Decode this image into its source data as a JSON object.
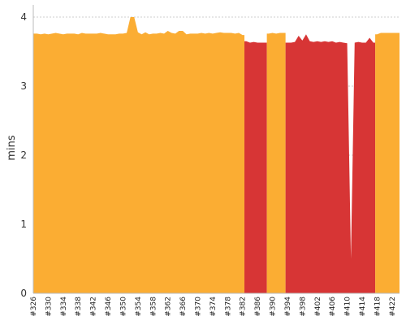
{
  "chart_data": {
    "type": "area",
    "ylabel": "mins",
    "ylim": [
      0,
      4
    ],
    "yticks": [
      "0",
      "1",
      "2",
      "3",
      "4"
    ],
    "grid": "horizontal dashed",
    "x_tick_labels": [
      "#326",
      "#330",
      "#334",
      "#338",
      "#342",
      "#346",
      "#350",
      "#354",
      "#358",
      "#362",
      "#366",
      "#370",
      "#374",
      "#378",
      "#382",
      "#386",
      "#390",
      "#394",
      "#398",
      "#402",
      "#406",
      "#410",
      "#414",
      "#418",
      "#422"
    ],
    "x_range": [
      326,
      424
    ],
    "x": [
      326,
      327,
      328,
      329,
      330,
      331,
      332,
      333,
      334,
      335,
      336,
      337,
      338,
      339,
      340,
      341,
      342,
      343,
      344,
      345,
      346,
      347,
      348,
      349,
      350,
      351,
      352,
      353,
      354,
      355,
      356,
      357,
      358,
      359,
      360,
      361,
      362,
      363,
      364,
      365,
      366,
      367,
      368,
      369,
      370,
      371,
      372,
      373,
      374,
      375,
      376,
      377,
      378,
      379,
      380,
      381,
      382,
      383,
      384,
      385,
      386,
      387,
      388,
      389,
      390,
      391,
      392,
      393,
      394,
      395,
      396,
      397,
      398,
      399,
      400,
      401,
      402,
      403,
      404,
      405,
      406,
      407,
      408,
      409,
      410,
      411,
      412,
      413,
      414,
      415,
      416,
      417,
      418,
      419,
      420,
      421,
      422,
      423,
      424
    ],
    "values": [
      3.76,
      3.76,
      3.75,
      3.76,
      3.75,
      3.76,
      3.77,
      3.76,
      3.75,
      3.76,
      3.76,
      3.76,
      3.75,
      3.77,
      3.76,
      3.76,
      3.76,
      3.76,
      3.77,
      3.76,
      3.75,
      3.75,
      3.75,
      3.76,
      3.76,
      3.77,
      4.0,
      4.0,
      3.78,
      3.75,
      3.78,
      3.75,
      3.76,
      3.76,
      3.77,
      3.76,
      3.8,
      3.77,
      3.76,
      3.8,
      3.8,
      3.75,
      3.76,
      3.76,
      3.76,
      3.77,
      3.76,
      3.77,
      3.76,
      3.77,
      3.78,
      3.77,
      3.77,
      3.77,
      3.76,
      3.77,
      3.74,
      3.65,
      3.63,
      3.64,
      3.63,
      3.63,
      3.63,
      3.76,
      3.77,
      3.76,
      3.77,
      3.77,
      3.63,
      3.63,
      3.64,
      3.73,
      3.66,
      3.75,
      3.65,
      3.64,
      3.65,
      3.64,
      3.65,
      3.64,
      3.65,
      3.63,
      3.64,
      3.63,
      3.62,
      0.5,
      3.63,
      3.64,
      3.63,
      3.63,
      3.7,
      3.63,
      3.75,
      3.77,
      3.77,
      3.77,
      3.77,
      3.77,
      3.77
    ],
    "status": [
      "ok",
      "ok",
      "ok",
      "ok",
      "ok",
      "ok",
      "ok",
      "ok",
      "ok",
      "ok",
      "ok",
      "ok",
      "ok",
      "ok",
      "ok",
      "ok",
      "ok",
      "ok",
      "ok",
      "ok",
      "ok",
      "ok",
      "ok",
      "ok",
      "ok",
      "ok",
      "ok",
      "ok",
      "ok",
      "ok",
      "ok",
      "ok",
      "ok",
      "ok",
      "ok",
      "ok",
      "ok",
      "ok",
      "ok",
      "ok",
      "ok",
      "ok",
      "ok",
      "ok",
      "ok",
      "ok",
      "ok",
      "ok",
      "ok",
      "ok",
      "ok",
      "ok",
      "ok",
      "ok",
      "ok",
      "ok",
      "ok",
      "fail",
      "fail",
      "fail",
      "fail",
      "fail",
      "fail",
      "ok",
      "ok",
      "ok",
      "ok",
      "ok",
      "fail",
      "fail",
      "fail",
      "fail",
      "fail",
      "fail",
      "fail",
      "fail",
      "fail",
      "fail",
      "fail",
      "fail",
      "fail",
      "fail",
      "fail",
      "fail",
      "fail",
      "fail",
      "fail",
      "fail",
      "fail",
      "fail",
      "fail",
      "fail",
      "ok",
      "ok",
      "ok",
      "ok",
      "ok",
      "ok",
      "ok"
    ],
    "colors": {
      "ok": "#fbad33",
      "fail": "#d73535",
      "grid": "#999999",
      "axis": "#bbbbbb"
    }
  }
}
